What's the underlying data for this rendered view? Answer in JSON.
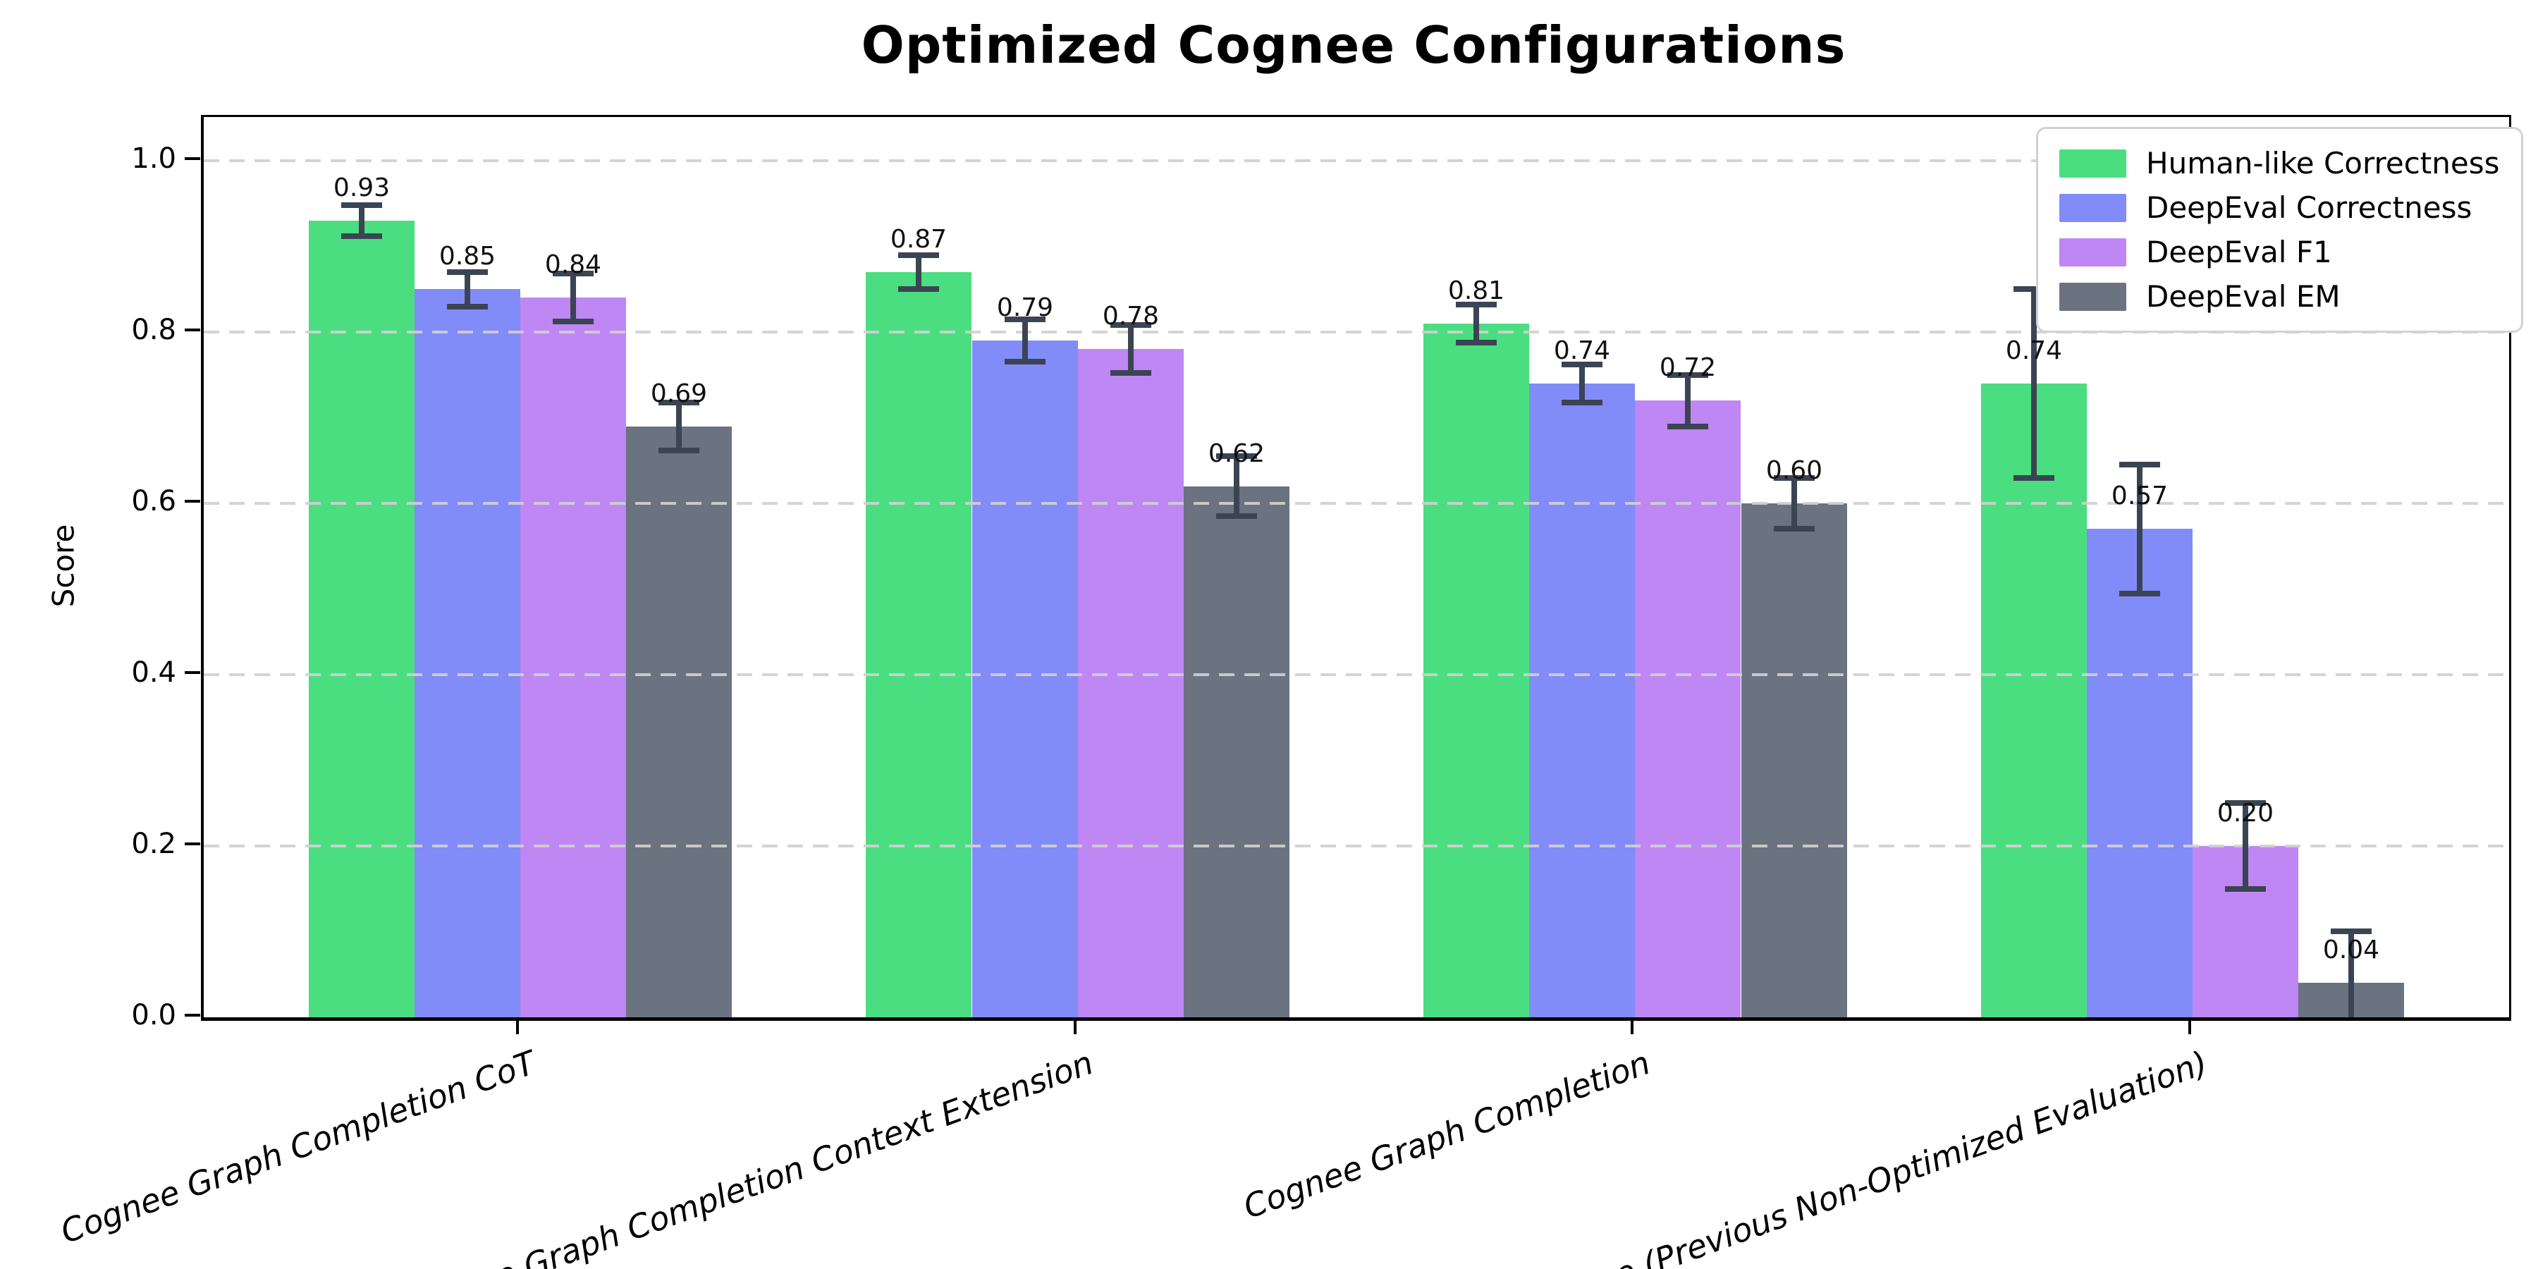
{
  "chart_data": {
    "type": "bar",
    "title": "Optimized Cognee Configurations",
    "xlabel": "",
    "ylabel": "Score",
    "ylim": [
      0,
      1.05
    ],
    "yticks": [
      0.0,
      0.2,
      0.4,
      0.6,
      0.8,
      1.0
    ],
    "grid": "horizontal-dashed",
    "legend_position": "upper-right",
    "bar_labels": true,
    "categories": [
      "Cognee Graph Completion CoT",
      "Cognee Graph Completion Context Extension",
      "Cognee Graph Completion",
      "Cognee (Previous Non-Optimized Evaluation)"
    ],
    "series": [
      {
        "name": "Human-like Correctness",
        "color": "#4ade80",
        "values": [
          0.93,
          0.87,
          0.81,
          0.74
        ],
        "errors": [
          0.018,
          0.02,
          0.022,
          0.11
        ]
      },
      {
        "name": "DeepEval Correctness",
        "color": "#818cf8",
        "values": [
          0.85,
          0.79,
          0.74,
          0.57
        ],
        "errors": [
          0.02,
          0.025,
          0.022,
          0.075
        ]
      },
      {
        "name": "DeepEval F1",
        "color": "#bf87f3",
        "values": [
          0.84,
          0.78,
          0.72,
          0.2
        ],
        "errors": [
          0.028,
          0.028,
          0.03,
          0.05
        ]
      },
      {
        "name": "DeepEval EM",
        "color": "#6b7280",
        "values": [
          0.69,
          0.62,
          0.6,
          0.04
        ],
        "errors": [
          0.028,
          0.035,
          0.03,
          0.06
        ]
      }
    ]
  },
  "colors": {
    "background": "#ffffff",
    "error_bar": "#3b4452",
    "gridline": "#d0d0d0",
    "axis": "#000000",
    "legend_border": "#d2d2d2",
    "text": "#000000"
  }
}
